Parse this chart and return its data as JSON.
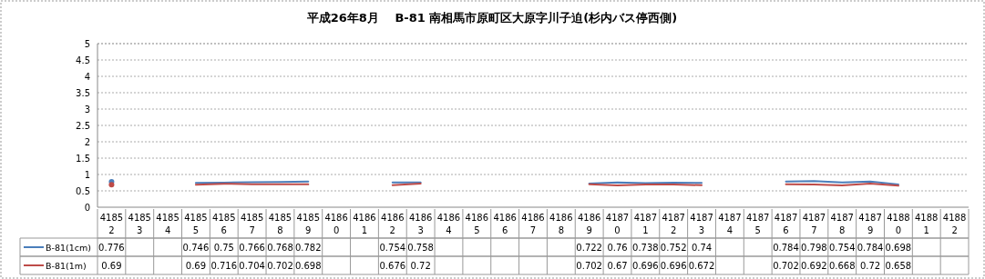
{
  "chart_data": {
    "type": "line",
    "title": "平成26年8月　 B-81 南相馬市原町区大原字川子迫(杉内バス停西側)",
    "categories": [
      "41852",
      "41853",
      "41854",
      "41855",
      "41856",
      "41857",
      "41858",
      "41859",
      "41860",
      "41861",
      "41862",
      "41863",
      "41864",
      "41865",
      "41866",
      "41867",
      "41868",
      "41869",
      "41870",
      "41871",
      "41872",
      "41873",
      "41874",
      "41875",
      "41876",
      "41877",
      "41878",
      "41879",
      "41880",
      "41881",
      "41882"
    ],
    "series": [
      {
        "name": "B-81(1cm)",
        "color": "#4a7ebb",
        "values": [
          0.776,
          null,
          null,
          0.746,
          0.75,
          0.766,
          0.768,
          0.782,
          null,
          null,
          0.754,
          0.758,
          null,
          null,
          null,
          null,
          null,
          0.722,
          0.76,
          0.738,
          0.752,
          0.74,
          null,
          null,
          0.784,
          0.798,
          0.754,
          0.784,
          0.698,
          null,
          null
        ]
      },
      {
        "name": "B-81(1m)",
        "color": "#be4b48",
        "values": [
          0.69,
          null,
          null,
          0.69,
          0.716,
          0.704,
          0.702,
          0.698,
          null,
          null,
          0.676,
          0.72,
          null,
          null,
          null,
          null,
          null,
          0.702,
          0.67,
          0.696,
          0.696,
          0.672,
          null,
          null,
          0.702,
          0.692,
          0.668,
          0.72,
          0.658,
          null,
          null
        ]
      }
    ],
    "ylim": [
      0,
      5
    ],
    "yticks": [
      0,
      0.5,
      1,
      1.5,
      2,
      2.5,
      3,
      3.5,
      4,
      4.5,
      5
    ],
    "grid": "y",
    "legend": "bottom",
    "data_labels": true,
    "marker": "none"
  }
}
